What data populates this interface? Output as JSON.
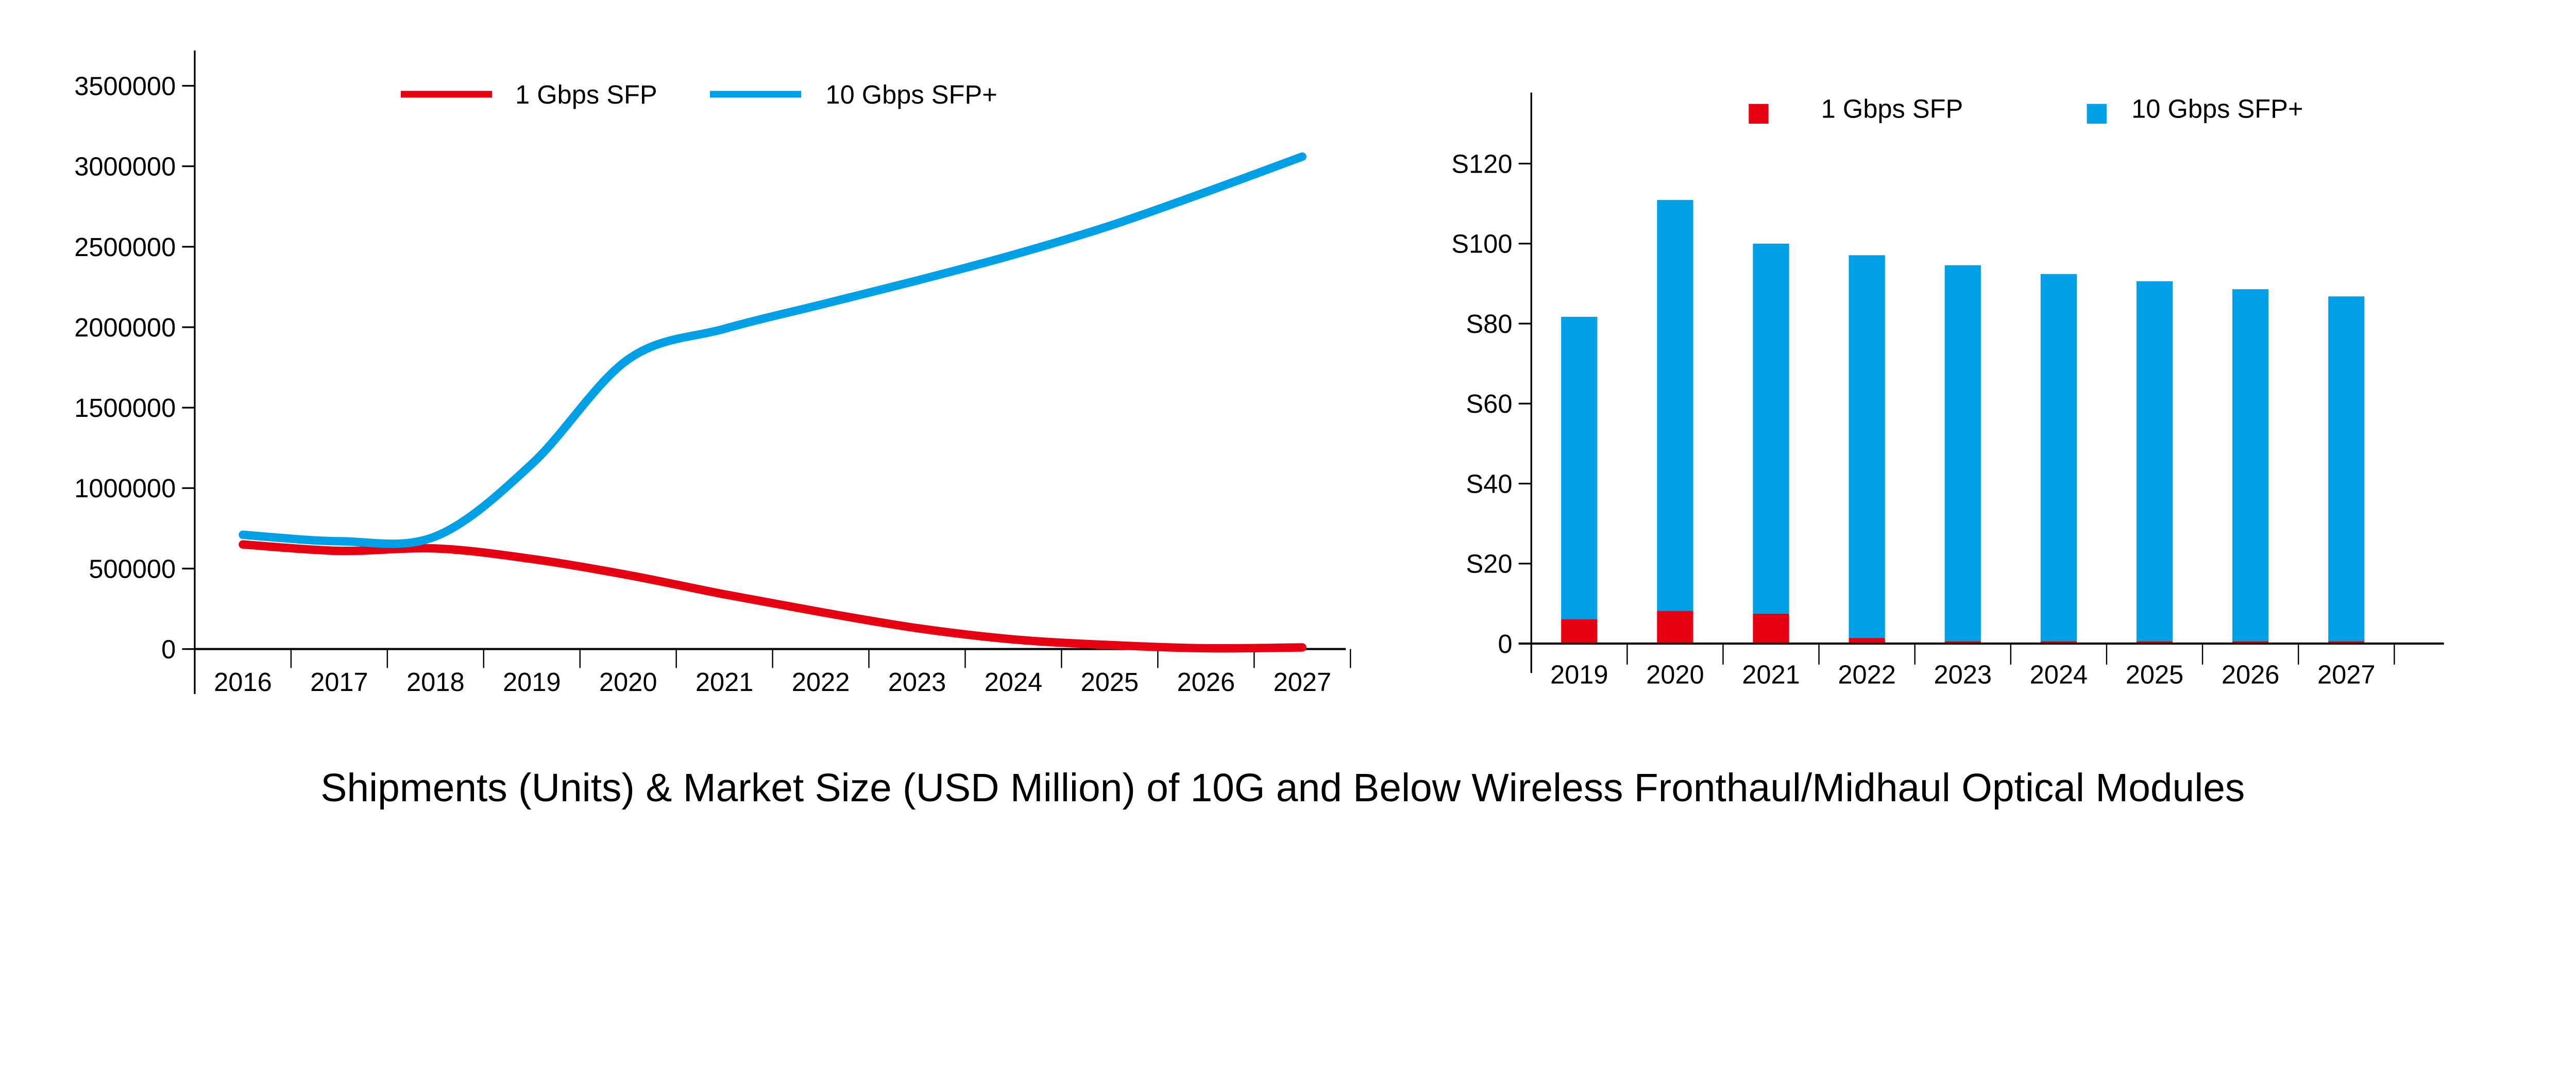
{
  "title": "Shipments (Units) & Market Size (USD Million) of 10G and Below Wireless Fronthaul/Midhaul Optical Modules",
  "colors": {
    "sfp1g": "#e60012",
    "sfp10g": "#00a0e6",
    "axis": "#000000"
  },
  "chart_data": [
    {
      "type": "line",
      "title": "",
      "xlabel": "",
      "ylabel": "",
      "categories": [
        "2016",
        "2017",
        "2018",
        "2019",
        "2020",
        "2021",
        "2022",
        "2023",
        "2024",
        "2025",
        "2026",
        "2027"
      ],
      "ylim": [
        0,
        3700000
      ],
      "yticks": [
        0,
        500000,
        1000000,
        1500000,
        2000000,
        2500000,
        3000000,
        3500000
      ],
      "ytick_labels": [
        "0",
        "500000",
        "1000000",
        "1500000",
        "2000000",
        "2500000",
        "3000000",
        "3500000"
      ],
      "grid": false,
      "legend_placement": "top-center",
      "series": [
        {
          "name": "1 Gbps SFP",
          "color": "#e60012",
          "values": [
            650000,
            610000,
            625000,
            560000,
            460000,
            340000,
            230000,
            130000,
            60000,
            25000,
            5000,
            10000
          ]
        },
        {
          "name": "10 Gbps SFP+",
          "color": "#00a0e6",
          "values": [
            710000,
            670000,
            700000,
            1150000,
            1800000,
            1990000,
            2140000,
            2290000,
            2450000,
            2630000,
            2840000,
            3060000
          ]
        }
      ]
    },
    {
      "type": "bar",
      "stacked": true,
      "title": "",
      "xlabel": "",
      "ylabel": "",
      "categories": [
        "2019",
        "2020",
        "2021",
        "2022",
        "2023",
        "2024",
        "2025",
        "2026",
        "2027"
      ],
      "ylim": [
        0,
        138
      ],
      "yticks": [
        0,
        20,
        40,
        60,
        80,
        100,
        120
      ],
      "ytick_labels": [
        "0",
        "S20",
        "S40",
        "S60",
        "S80",
        "S100",
        "S120"
      ],
      "grid": false,
      "legend_placement": "top-center",
      "series": [
        {
          "name": "1 Gbps SFP",
          "color": "#e60012",
          "values": [
            6.1,
            8.2,
            7.5,
            1.4,
            0.6,
            0.6,
            0.6,
            0.6,
            0.6
          ]
        },
        {
          "name": "10 Gbps SFP+",
          "color": "#00a0e6",
          "values": [
            75.6,
            102.7,
            92.5,
            95.7,
            94.0,
            91.8,
            90.0,
            88.0,
            86.2
          ]
        }
      ]
    }
  ]
}
